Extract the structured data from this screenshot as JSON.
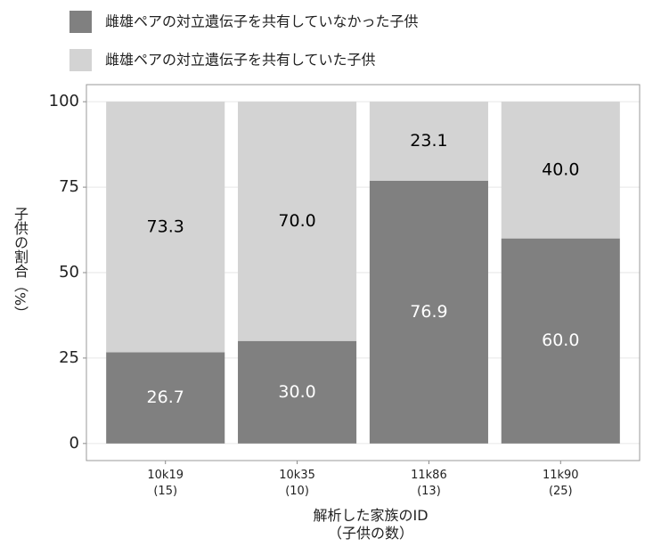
{
  "chart_data": {
    "type": "stacked_bar",
    "categories": [
      "10k19\n(15)",
      "10k35\n(10)",
      "11k86\n(13)",
      "11k90\n(25)"
    ],
    "series": [
      {
        "name": "雌雄ペアの対立遺伝子を共有していなかった子供",
        "color": "#808080",
        "label_color": "#ffffff",
        "values": [
          26.7,
          30,
          76.9,
          60
        ],
        "value_labels": [
          "26.7",
          "30.0",
          "76.9",
          "60.0"
        ]
      },
      {
        "name": "雌雄ペアの対立遺伝子を共有していた子供",
        "color": "#d3d3d3",
        "label_color": "#000000",
        "values": [
          73.3,
          70,
          23.1,
          40
        ],
        "value_labels": [
          "73.3",
          "70.0",
          "23.1",
          "40.0"
        ]
      }
    ],
    "x_label": "解析した家族のID\n（子供の数）",
    "y_label": "子供の割合（%）",
    "ylim": [
      -5,
      105
    ],
    "yticks": [
      0,
      25,
      50,
      75,
      100
    ],
    "grid": true
  }
}
